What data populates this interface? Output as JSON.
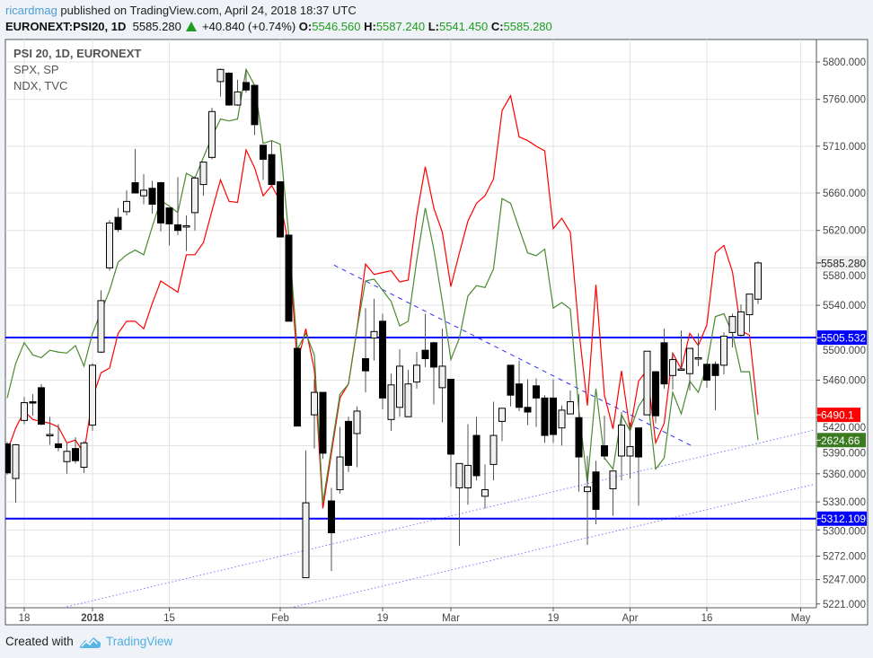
{
  "header": {
    "user": "ricardmag",
    "published": "published on TradingView.com, April 24, 2018 18:37 UTC",
    "symbol": "EURONEXT:PSI20, 1D",
    "last": "5585.280",
    "change": "+40.840 (+0.74%)",
    "o_label": "O:",
    "o": "5546.560",
    "h_label": "H:",
    "h": "5587.240",
    "l_label": "L:",
    "l": "5541.450",
    "c_label": "C:",
    "c": "5585.280"
  },
  "legend": {
    "main": "PSI 20, 1D, EURONEXT",
    "overlay1": "SPX, SP",
    "overlay2": "NDX, TVC"
  },
  "footer": {
    "created": "Created with",
    "brand": "TradingView"
  },
  "colors": {
    "up_body": "#f0f0f0",
    "down_body": "#000000",
    "spx_line": "#4a8a30",
    "ndx_line": "#ff0000",
    "level": "#0000ff",
    "trend": "#2b2bff",
    "channel": "#7a7aff"
  },
  "chart_data": {
    "type": "candlestick",
    "title": "PSI 20, 1D, EURONEXT",
    "ylim": [
      5221,
      5820
    ],
    "y_ticks": [
      "5800.000",
      "5760.000",
      "5710.000",
      "5660.000",
      "5620.000",
      "5580.000",
      "5540.000",
      "5500.000",
      "5460.000",
      "5420.000",
      "5390.000",
      "5360.000",
      "5330.000",
      "5300.000",
      "5272.000",
      "5247.000",
      "5221.000"
    ],
    "x_labels": [
      {
        "label": "18",
        "bar": 2,
        "bold": false
      },
      {
        "label": "2018",
        "bar": 10,
        "bold": true
      },
      {
        "label": "15",
        "bar": 19,
        "bold": false
      },
      {
        "label": "Feb",
        "bar": 32,
        "bold": false
      },
      {
        "label": "19",
        "bar": 44,
        "bold": false
      },
      {
        "label": "Mar",
        "bar": 52,
        "bold": false
      },
      {
        "label": "19",
        "bar": 64,
        "bold": false
      },
      {
        "label": "Apr",
        "bar": 73,
        "bold": false
      },
      {
        "label": "16",
        "bar": 82,
        "bold": false
      },
      {
        "label": "May",
        "bar": 93,
        "bold": false
      }
    ],
    "candles_ohlc": [
      [
        5392,
        5394,
        5359,
        5361
      ],
      [
        5355,
        5392,
        5329,
        5391
      ],
      [
        5417,
        5442,
        5413,
        5436
      ],
      [
        5437,
        5445,
        5422,
        5436
      ],
      [
        5452,
        5456,
        5412,
        5413
      ],
      [
        5402,
        5421,
        5391,
        5402
      ],
      [
        5392,
        5413,
        5384,
        5388
      ],
      [
        5373,
        5393,
        5360,
        5384
      ],
      [
        5387,
        5399,
        5371,
        5374
      ],
      [
        5367,
        5395,
        5361,
        5393
      ],
      [
        5412,
        5478,
        5406,
        5476
      ],
      [
        5490,
        5556,
        5489,
        5545
      ],
      [
        5580,
        5631,
        5577,
        5628
      ],
      [
        5634,
        5644,
        5618,
        5621
      ],
      [
        5640,
        5663,
        5636,
        5651
      ],
      [
        5671,
        5707,
        5660,
        5660
      ],
      [
        5657,
        5680,
        5648,
        5663
      ],
      [
        5665,
        5673,
        5638,
        5648
      ],
      [
        5671,
        5672,
        5619,
        5628
      ],
      [
        5644,
        5644,
        5604,
        5627
      ],
      [
        5626,
        5677,
        5615,
        5620
      ],
      [
        5625,
        5636,
        5598,
        5625
      ],
      [
        5639,
        5678,
        5620,
        5676
      ],
      [
        5669,
        5693,
        5657,
        5693
      ],
      [
        5698,
        5751,
        5696,
        5747
      ],
      [
        5779,
        5793,
        5763,
        5792
      ],
      [
        5788,
        5789,
        5753,
        5754
      ],
      [
        5754,
        5781,
        5753,
        5768
      ],
      [
        5778,
        5792,
        5767,
        5770
      ],
      [
        5775,
        5775,
        5722,
        5733
      ],
      [
        5711,
        5711,
        5674,
        5696
      ],
      [
        5701,
        5716,
        5669,
        5669
      ],
      [
        5672,
        5672,
        5613,
        5613
      ],
      [
        5615,
        5615,
        5523,
        5523
      ],
      [
        5494,
        5494,
        5411,
        5411
      ],
      [
        5249,
        5385,
        5249,
        5329
      ],
      [
        5423,
        5461,
        5387,
        5447
      ],
      [
        5447,
        5447,
        5376,
        5382
      ],
      [
        5331,
        5345,
        5256,
        5297
      ],
      [
        5343,
        5410,
        5339,
        5378
      ],
      [
        5416,
        5421,
        5362,
        5369
      ],
      [
        5403,
        5432,
        5367,
        5427
      ],
      [
        5483,
        5537,
        5447,
        5470
      ],
      [
        5505,
        5547,
        5481,
        5512
      ],
      [
        5523,
        5531,
        5429,
        5441
      ],
      [
        5418,
        5467,
        5406,
        5455
      ],
      [
        5431,
        5493,
        5421,
        5475
      ],
      [
        5421,
        5471,
        5421,
        5456
      ],
      [
        5458,
        5490,
        5451,
        5476
      ],
      [
        5492,
        5531,
        5474,
        5483
      ],
      [
        5500,
        5501,
        5434,
        5474
      ],
      [
        5452,
        5515,
        5415,
        5475
      ],
      [
        5461,
        5461,
        5346,
        5381
      ],
      [
        5345,
        5371,
        5283,
        5371
      ],
      [
        5345,
        5413,
        5327,
        5369
      ],
      [
        5401,
        5421,
        5353,
        5358
      ],
      [
        5336,
        5370,
        5323,
        5343
      ],
      [
        5370,
        5437,
        5353,
        5401
      ],
      [
        5416,
        5430,
        5395,
        5430
      ],
      [
        5476,
        5476,
        5432,
        5444
      ],
      [
        5456,
        5481,
        5427,
        5431
      ],
      [
        5431,
        5461,
        5412,
        5426
      ],
      [
        5454,
        5462,
        5410,
        5441
      ],
      [
        5441,
        5444,
        5393,
        5401
      ],
      [
        5441,
        5461,
        5393,
        5402
      ],
      [
        5409,
        5433,
        5390,
        5428
      ],
      [
        5424,
        5449,
        5424,
        5437
      ],
      [
        5420,
        5445,
        5341,
        5378
      ],
      [
        5341,
        5379,
        5284,
        5346
      ],
      [
        5362,
        5374,
        5306,
        5322
      ],
      [
        5390,
        5422,
        5375,
        5379
      ],
      [
        5344,
        5363,
        5315,
        5363
      ],
      [
        5379,
        5426,
        5353,
        5412
      ],
      [
        5379,
        5415,
        5355,
        5389
      ],
      [
        5409,
        5409,
        5326,
        5378
      ],
      [
        5423,
        5491,
        5423,
        5491
      ],
      [
        5469,
        5470,
        5414,
        5422
      ],
      [
        5500,
        5515,
        5451,
        5456
      ],
      [
        5465,
        5489,
        5450,
        5482
      ],
      [
        5472,
        5513,
        5471,
        5472
      ],
      [
        5467,
        5494,
        5449,
        5494
      ],
      [
        5484,
        5510,
        5475,
        5484
      ],
      [
        5477,
        5477,
        5452,
        5460
      ],
      [
        5477,
        5480,
        5428,
        5465
      ],
      [
        5476,
        5511,
        5466,
        5507
      ],
      [
        5511,
        5531,
        5495,
        5528
      ],
      [
        5508,
        5541,
        5505,
        5533
      ],
      [
        5530,
        5552,
        5511,
        5552
      ],
      [
        5546.56,
        5587.24,
        5541.45,
        5585.28
      ]
    ],
    "overlays": [
      {
        "name": "NDX, TVC",
        "color": "#ff0000",
        "last_label": "6490.1",
        "values_on_price_scale": [
          5384,
          5409,
          5427,
          5418,
          5416,
          5414,
          5410,
          5393,
          5396,
          5382,
          5441,
          5468,
          5473,
          5510,
          5523,
          5523,
          5515,
          5542,
          5566,
          5560,
          5554,
          5594,
          5594,
          5607,
          5641,
          5674,
          5651,
          5650,
          5706,
          5687,
          5657,
          5668,
          5651,
          5604,
          5478,
          5515,
          5471,
          5323,
          5382,
          5441,
          5456,
          5515,
          5584,
          5573,
          5575,
          5577,
          5565,
          5567,
          5636,
          5688,
          5644,
          5618,
          5560,
          5596,
          5630,
          5649,
          5657,
          5675,
          5748,
          5764,
          5720,
          5716,
          5710,
          5705,
          5622,
          5633,
          5618,
          5514,
          5433,
          5562,
          5444,
          5408,
          5470,
          5406,
          5459,
          5471,
          5393,
          5414,
          5489,
          5472,
          5510,
          5497,
          5519,
          5596,
          5604,
          5576,
          5513,
          5508,
          5423
        ]
      },
      {
        "name": "SPX, SP",
        "color": "#4a8a30",
        "last_label": "2624.66",
        "values_on_price_scale": [
          5441,
          5478,
          5500,
          5487,
          5484,
          5492,
          5490,
          5489,
          5497,
          5475,
          5510,
          5533,
          5556,
          5586,
          5594,
          5599,
          5594,
          5624,
          5652,
          5646,
          5639,
          5681,
          5676,
          5698,
          5720,
          5739,
          5737,
          5739,
          5792,
          5775,
          5713,
          5716,
          5712,
          5615,
          5493,
          5510,
          5487,
          5329,
          5387,
          5445,
          5456,
          5515,
          5566,
          5568,
          5556,
          5544,
          5518,
          5523,
          5588,
          5644,
          5600,
          5544,
          5482,
          5505,
          5550,
          5561,
          5559,
          5579,
          5654,
          5649,
          5622,
          5596,
          5593,
          5600,
          5537,
          5543,
          5536,
          5428,
          5350,
          5451,
          5377,
          5365,
          5423,
          5406,
          5432,
          5446,
          5365,
          5377,
          5447,
          5424,
          5459,
          5447,
          5476,
          5528,
          5531,
          5510,
          5469,
          5469,
          5396
        ]
      }
    ],
    "last_price_label": "5585.280",
    "horizontal_levels": [
      {
        "price": 5505.532,
        "label": "5505.532"
      },
      {
        "price": 5312.109,
        "label": "5312.109"
      }
    ],
    "trendlines": [
      {
        "style": "dashed",
        "from": [
          38.3,
          5583
        ],
        "to": [
          80.2,
          5390
        ]
      },
      {
        "style": "dotted",
        "from": [
          7,
          5218
        ],
        "to": [
          94.7,
          5407
        ]
      },
      {
        "style": "dotted",
        "from": [
          32.8,
          5216
        ],
        "to": [
          94.7,
          5349
        ]
      }
    ]
  }
}
